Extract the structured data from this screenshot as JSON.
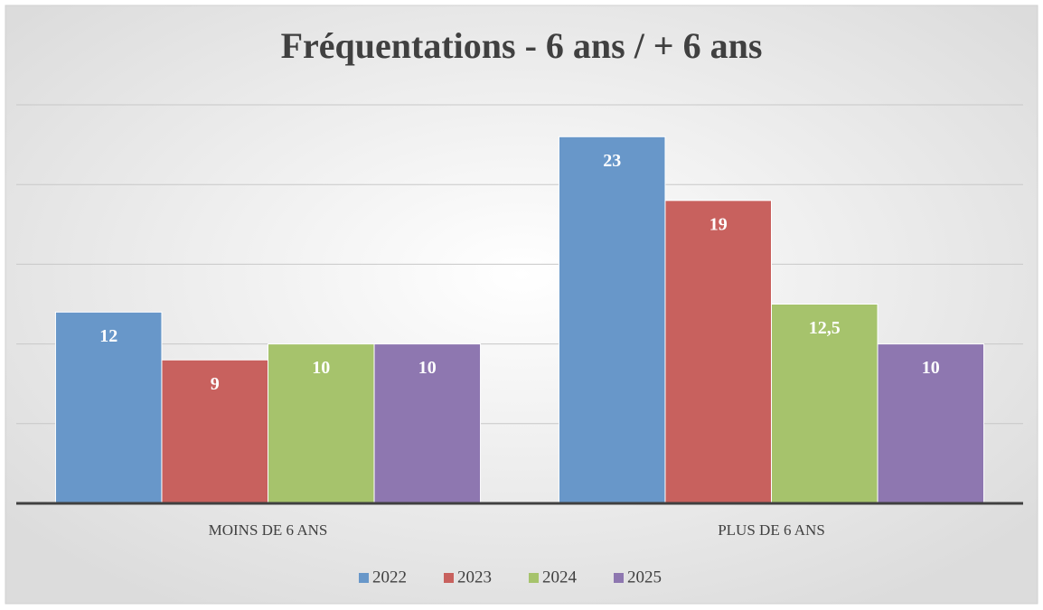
{
  "chart_data": {
    "type": "bar",
    "title": "Fréquentations - 6 ans / + 6 ans",
    "categories": [
      "MOINS DE 6 ANS",
      "PLUS DE 6 ANS"
    ],
    "series": [
      {
        "name": "2022",
        "color": "#6897c9",
        "values": [
          12,
          23
        ]
      },
      {
        "name": "2023",
        "color": "#c8615e",
        "values": [
          9,
          19
        ]
      },
      {
        "name": "2024",
        "color": "#a6c36c",
        "values": [
          10,
          12.5
        ],
        "value_labels": [
          "10",
          "12,5"
        ]
      },
      {
        "name": "2025",
        "color": "#8e77b0",
        "values": [
          10,
          10
        ]
      }
    ],
    "ylim": [
      0,
      25
    ],
    "yticks": [
      0,
      5,
      10,
      15,
      20,
      25
    ],
    "grid": true,
    "legend": "bottom"
  }
}
